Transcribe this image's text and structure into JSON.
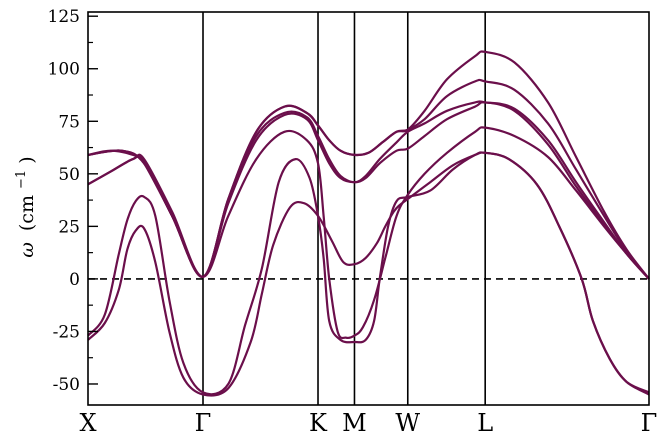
{
  "chart_data": {
    "type": "line",
    "title": "",
    "xlabel": "",
    "ylabel": "ω (cm⁻¹)",
    "ylabel_parts": {
      "symbol": "ω",
      "open": "(cm",
      "exp": "−1",
      "close": ")"
    },
    "ylim": [
      -60,
      127
    ],
    "yticks": [
      -50,
      -25,
      0,
      25,
      50,
      75,
      100,
      125
    ],
    "ytick_labels": [
      "-50",
      "-25",
      "0",
      "25",
      "50",
      "75",
      "100",
      "125"
    ],
    "xlim": [
      0,
      10
    ],
    "kpoints": [
      {
        "label": "X",
        "x": 0
      },
      {
        "label": "Γ",
        "x": 2.05
      },
      {
        "label": "K",
        "x": 4.1
      },
      {
        "label": "M",
        "x": 4.75
      },
      {
        "label": "W",
        "x": 5.7
      },
      {
        "label": "L",
        "x": 7.08
      },
      {
        "label": "Γ",
        "x": 10
      }
    ],
    "zero_line": {
      "y": 0,
      "style": "dashed"
    },
    "grid": false,
    "line_color": "#6b0f4b",
    "series": [
      {
        "x": [
          0,
          0.3,
          0.55,
          0.7,
          0.85,
          1.0,
          1.2,
          1.45,
          1.7,
          2.05,
          2.5,
          2.9,
          3.1,
          3.3,
          3.6,
          3.85,
          4.1,
          4.35,
          4.55,
          4.75,
          4.95,
          5.15,
          5.3,
          5.45,
          5.55,
          5.7,
          6.1,
          6.5,
          6.9,
          7.08,
          7.5,
          8.0,
          8.4,
          8.8,
          9.0,
          9.3,
          9.6,
          10
        ],
        "y": [
          -29,
          -21,
          -5,
          14,
          23,
          24,
          8,
          -25,
          -47,
          -55,
          -52,
          -30,
          -7,
          16,
          34,
          36,
          30,
          18,
          8,
          7,
          10,
          17,
          25,
          32,
          35,
          38,
          46,
          54,
          59,
          60,
          57,
          45,
          25,
          0,
          -20,
          -38,
          -49,
          -55
        ]
      },
      {
        "x": [
          0,
          0.3,
          0.55,
          0.7,
          0.85,
          1.0,
          1.2,
          1.45,
          1.7,
          2.05,
          2.5,
          2.8,
          3.1,
          3.4,
          3.7,
          3.95,
          4.1,
          4.2,
          4.3,
          4.5,
          4.75,
          4.95,
          5.1,
          5.2,
          5.35,
          5.5,
          5.7,
          6.1,
          6.5,
          6.9,
          7.08,
          7.5,
          8.0,
          8.4,
          8.8,
          9.0,
          9.3,
          9.6,
          10
        ],
        "y": [
          -27,
          -17,
          12,
          28,
          37,
          39,
          30,
          -10,
          -40,
          -54,
          -50,
          -22,
          5,
          46,
          57,
          48,
          30,
          10,
          -20,
          -29,
          -30,
          -29,
          -20,
          0,
          25,
          37,
          39,
          42,
          52,
          59,
          60,
          57,
          45,
          25,
          0,
          -20,
          -38,
          -49,
          -54
        ]
      },
      {
        "x": [
          0,
          0.4,
          0.8,
          1.0,
          1.5,
          2.05,
          2.5,
          3.0,
          3.5,
          3.9,
          4.1,
          4.2,
          4.3,
          4.45,
          4.6,
          4.75,
          4.9,
          5.1,
          5.3,
          5.5,
          5.7,
          6.0,
          6.4,
          6.9,
          7.08,
          7.6,
          8.2,
          8.7,
          9.2,
          9.6,
          10
        ],
        "y": [
          45,
          51,
          57,
          56,
          30,
          1,
          30,
          57,
          70,
          66,
          55,
          30,
          0,
          -25,
          -28,
          -27,
          -23,
          -10,
          10,
          30,
          40,
          50,
          60,
          70,
          72,
          68,
          58,
          42,
          25,
          12,
          0
        ]
      },
      {
        "x": [
          0,
          0.4,
          0.8,
          1.0,
          1.5,
          2.05,
          2.5,
          3.0,
          3.5,
          3.9,
          4.1,
          4.3,
          4.5,
          4.75,
          4.95,
          5.2,
          5.5,
          5.7,
          6.0,
          6.4,
          6.9,
          7.08,
          7.6,
          8.2,
          8.7,
          9.2,
          9.6,
          10
        ],
        "y": [
          45,
          51,
          57,
          57,
          32,
          1,
          36,
          66,
          78,
          76,
          66,
          55,
          48,
          46,
          48,
          55,
          61,
          62,
          68,
          76,
          82,
          84,
          80,
          64,
          44,
          26,
          12,
          0
        ]
      },
      {
        "x": [
          0,
          0.4,
          0.8,
          1.0,
          1.5,
          2.05,
          2.5,
          3.0,
          3.5,
          3.9,
          4.1,
          4.3,
          4.5,
          4.75,
          4.95,
          5.2,
          5.5,
          5.7,
          6.0,
          6.4,
          6.9,
          7.08,
          7.6,
          8.2,
          8.7,
          9.2,
          9.6,
          10
        ],
        "y": [
          59,
          61,
          59,
          55,
          30,
          1,
          37,
          68,
          79,
          77,
          68,
          57,
          49,
          46,
          49,
          57,
          65,
          70,
          74,
          80,
          84,
          84,
          81,
          66,
          46,
          27,
          12,
          0
        ]
      },
      {
        "x": [
          0,
          0.6,
          1.0,
          1.5,
          2.05,
          2.5,
          3.0,
          3.5,
          3.9,
          4.1,
          4.3,
          4.5,
          4.75,
          5.0,
          5.25,
          5.5,
          5.7,
          6.0,
          6.4,
          6.9,
          7.08,
          7.6,
          8.2,
          8.7,
          9.2,
          9.6,
          10
        ],
        "y": [
          59,
          61,
          55,
          30,
          1,
          38,
          70,
          82,
          79,
          73,
          66,
          61,
          59,
          60,
          65,
          70,
          71,
          76,
          87,
          94,
          94,
          90,
          74,
          52,
          30,
          13,
          0
        ]
      },
      {
        "x": [
          0,
          0.6,
          1.0,
          1.5,
          2.05,
          2.5,
          3.0,
          3.5,
          3.9,
          4.1,
          4.3,
          4.5,
          4.75,
          5.0,
          5.25,
          5.5,
          5.7,
          6.0,
          6.4,
          6.9,
          7.08,
          7.6,
          8.2,
          8.7,
          9.2,
          9.6,
          10
        ],
        "y": [
          59,
          61,
          55,
          30,
          1,
          38,
          70,
          82,
          79,
          73,
          66,
          61,
          59,
          60,
          65,
          70,
          71,
          80,
          95,
          106,
          108,
          103,
          84,
          58,
          32,
          14,
          0
        ]
      }
    ]
  }
}
